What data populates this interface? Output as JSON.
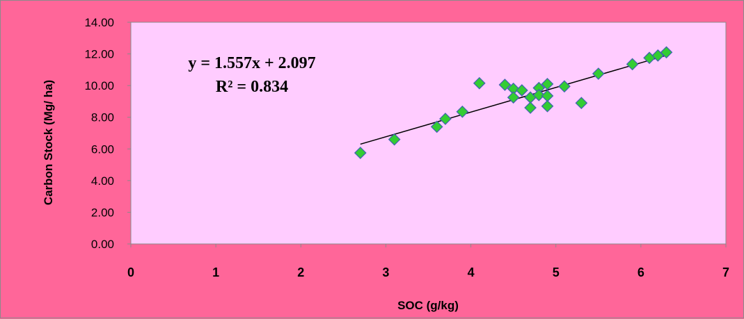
{
  "chart_data": {
    "type": "scatter",
    "title": "",
    "xlabel": "SOC (g/kg)",
    "ylabel": "Carbon  Stock (Mg/ ha)",
    "xlim": [
      0,
      7
    ],
    "ylim": [
      0,
      14
    ],
    "x_ticks": [
      "0",
      "1",
      "2",
      "3",
      "4",
      "5",
      "6",
      "7"
    ],
    "y_ticks": [
      "0.00",
      "2.00",
      "4.00",
      "6.00",
      "8.00",
      "10.00",
      "12.00",
      "14.00"
    ],
    "grid": false,
    "legend": "none",
    "series": [
      {
        "marker": "diamond",
        "color": "#33cc33",
        "edge_color": "#4060b0",
        "points": [
          [
            2.7,
            5.75
          ],
          [
            3.1,
            6.6
          ],
          [
            3.6,
            7.4
          ],
          [
            3.7,
            7.9
          ],
          [
            3.9,
            8.35
          ],
          [
            4.1,
            10.15
          ],
          [
            4.4,
            10.05
          ],
          [
            4.5,
            9.8
          ],
          [
            4.5,
            9.25
          ],
          [
            4.6,
            9.7
          ],
          [
            4.7,
            9.25
          ],
          [
            4.7,
            8.6
          ],
          [
            4.8,
            9.85
          ],
          [
            4.8,
            9.4
          ],
          [
            4.9,
            10.1
          ],
          [
            4.9,
            9.35
          ],
          [
            4.9,
            8.7
          ],
          [
            5.1,
            9.95
          ],
          [
            5.3,
            8.9
          ],
          [
            5.5,
            10.75
          ],
          [
            5.9,
            11.35
          ],
          [
            6.1,
            11.75
          ],
          [
            6.2,
            11.9
          ],
          [
            6.3,
            12.1
          ]
        ]
      }
    ],
    "trendline": {
      "slope": 1.557,
      "intercept": 2.097,
      "x_range": [
        2.7,
        6.3
      ],
      "color": "#000000",
      "equation": "y = 1.557x + 2.097",
      "r_squared": "R² = 0.834"
    },
    "plot_background": "#ffccff",
    "frame_background": "#ff6699"
  }
}
